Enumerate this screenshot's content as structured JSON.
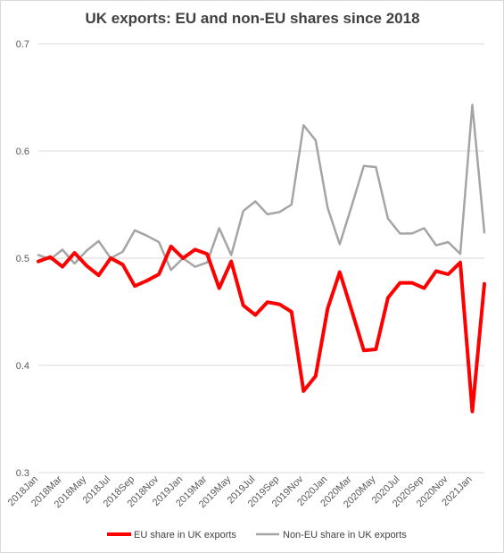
{
  "chart_data": {
    "type": "line",
    "title": "UK exports: EU and non-EU shares since 2018",
    "xlabel": "",
    "ylabel": "",
    "ylim": [
      0.3,
      0.7
    ],
    "yticks": [
      "0.3",
      "0.4",
      "0.5",
      "0.6",
      "0.7"
    ],
    "grid": true,
    "legend_position": "bottom",
    "x": [
      "2018Jan",
      "2018Feb",
      "2018Mar",
      "2018Apr",
      "2018May",
      "2018Jun",
      "2018Jul",
      "2018Aug",
      "2018Sep",
      "2018Oct",
      "2018Nov",
      "2018Dec",
      "2019Jan",
      "2019Feb",
      "2019Mar",
      "2019Apr",
      "2019May",
      "2019Jun",
      "2019Jul",
      "2019Aug",
      "2019Sep",
      "2019Oct",
      "2019Nov",
      "2019Dec",
      "2020Jan",
      "2020Feb",
      "2020Mar",
      "2020Apr",
      "2020May",
      "2020Jun",
      "2020Jul",
      "2020Aug",
      "2020Sep",
      "2020Oct",
      "2020Nov",
      "2020Dec",
      "2021Jan",
      "2021Feb"
    ],
    "xtick_labels": [
      "2018Jan",
      "2018Mar",
      "2018May",
      "2018Jul",
      "2018Sep",
      "2018Nov",
      "2019Jan",
      "2019Mar",
      "2019May",
      "2019Jul",
      "2019Sep",
      "2019Nov",
      "2020Jan",
      "2020Mar",
      "2020May",
      "2020Jul",
      "2020Sep",
      "2020Nov",
      "2021Jan"
    ],
    "series": [
      {
        "name": "EU share in UK exports",
        "color": "#ff0000",
        "values": [
          0.497,
          0.501,
          0.492,
          0.505,
          0.493,
          0.484,
          0.5,
          0.494,
          0.474,
          0.479,
          0.485,
          0.511,
          0.5,
          0.508,
          0.504,
          0.472,
          0.497,
          0.456,
          0.447,
          0.459,
          0.457,
          0.45,
          0.376,
          0.39,
          0.453,
          0.487,
          0.451,
          0.414,
          0.415,
          0.463,
          0.477,
          0.477,
          0.472,
          0.488,
          0.485,
          0.496,
          0.357,
          0.476
        ]
      },
      {
        "name": "Non-EU share in UK exports",
        "color": "#a5a5a5",
        "values": [
          0.503,
          0.499,
          0.508,
          0.495,
          0.507,
          0.516,
          0.5,
          0.506,
          0.526,
          0.521,
          0.515,
          0.489,
          0.5,
          0.492,
          0.496,
          0.528,
          0.503,
          0.544,
          0.553,
          0.541,
          0.543,
          0.55,
          0.624,
          0.61,
          0.547,
          0.513,
          0.549,
          0.586,
          0.585,
          0.537,
          0.523,
          0.523,
          0.528,
          0.512,
          0.515,
          0.504,
          0.643,
          0.524
        ]
      }
    ]
  }
}
